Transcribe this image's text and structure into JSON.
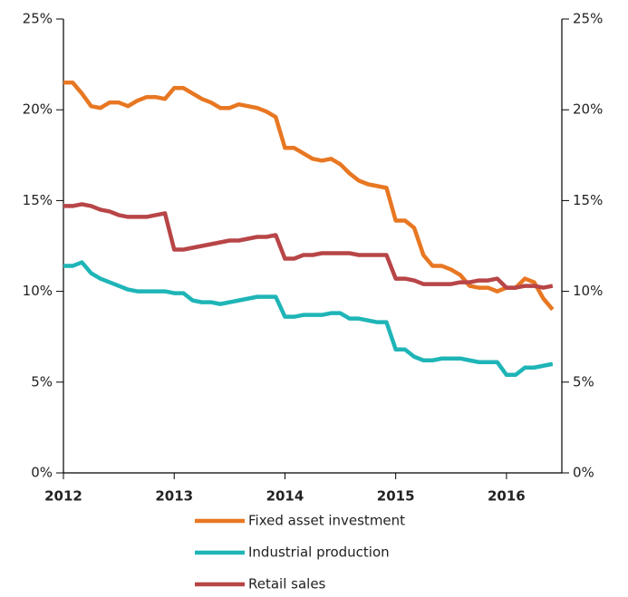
{
  "chart_data": {
    "type": "line",
    "categories": [
      "2012",
      null,
      null,
      null,
      null,
      null,
      null,
      null,
      null,
      null,
      null,
      null,
      "2013",
      null,
      null,
      null,
      null,
      null,
      null,
      null,
      null,
      null,
      null,
      null,
      "2014",
      null,
      null,
      null,
      null,
      null,
      null,
      null,
      null,
      null,
      null,
      null,
      "2015",
      null,
      null,
      null,
      null,
      null,
      null,
      null,
      null,
      null,
      null,
      null,
      "2016",
      null,
      null,
      null,
      null,
      null
    ],
    "series": [
      {
        "name": "Fixed asset investment",
        "color": "#e87722",
        "values": [
          21.5,
          21.5,
          20.9,
          20.2,
          20.1,
          20.4,
          20.4,
          20.2,
          20.5,
          20.7,
          20.7,
          20.6,
          21.2,
          21.2,
          20.9,
          20.6,
          20.4,
          20.1,
          20.1,
          20.3,
          20.2,
          20.1,
          19.9,
          19.6,
          17.9,
          17.9,
          17.6,
          17.3,
          17.2,
          17.3,
          17.0,
          16.5,
          16.1,
          15.9,
          15.8,
          15.7,
          13.9,
          13.9,
          13.5,
          12.0,
          11.4,
          11.4,
          11.2,
          10.9,
          10.3,
          10.2,
          10.2,
          10.0,
          10.2,
          10.2,
          10.7,
          10.5,
          9.6,
          9.0
        ]
      },
      {
        "name": "Industrial production",
        "color": "#1fb5b7",
        "values": [
          11.4,
          11.4,
          11.6,
          11.0,
          10.7,
          10.5,
          10.3,
          10.1,
          10.0,
          10.0,
          10.0,
          10.0,
          9.9,
          9.9,
          9.5,
          9.4,
          9.4,
          9.3,
          9.4,
          9.5,
          9.6,
          9.7,
          9.7,
          9.7,
          8.6,
          8.6,
          8.7,
          8.7,
          8.7,
          8.8,
          8.8,
          8.5,
          8.5,
          8.4,
          8.3,
          8.3,
          6.8,
          6.8,
          6.4,
          6.2,
          6.2,
          6.3,
          6.3,
          6.3,
          6.2,
          6.1,
          6.1,
          6.1,
          5.4,
          5.4,
          5.8,
          5.8,
          5.9,
          6.0
        ]
      },
      {
        "name": "Retail sales",
        "color": "#b84547",
        "values": [
          14.7,
          14.7,
          14.8,
          14.7,
          14.5,
          14.4,
          14.2,
          14.1,
          14.1,
          14.1,
          14.2,
          14.3,
          12.3,
          12.3,
          12.4,
          12.5,
          12.6,
          12.7,
          12.8,
          12.8,
          12.9,
          13.0,
          13.0,
          13.1,
          11.8,
          11.8,
          12.0,
          12.0,
          12.1,
          12.1,
          12.1,
          12.1,
          12.0,
          12.0,
          12.0,
          12.0,
          10.7,
          10.7,
          10.6,
          10.4,
          10.4,
          10.4,
          10.4,
          10.5,
          10.5,
          10.6,
          10.6,
          10.7,
          10.2,
          10.2,
          10.3,
          10.3,
          10.2,
          10.3
        ]
      }
    ],
    "ylim": [
      0,
      25
    ],
    "yticks": [
      {
        "value": 0,
        "label": "0%"
      },
      {
        "value": 5,
        "label": "5%"
      },
      {
        "value": 10,
        "label": "10%"
      },
      {
        "value": 15,
        "label": "15%"
      },
      {
        "value": 20,
        "label": "20%"
      },
      {
        "value": 25,
        "label": "25%"
      }
    ],
    "y2lim": [
      0,
      25
    ],
    "y2ticks": [
      {
        "value": 0,
        "label": "0%"
      },
      {
        "value": 5,
        "label": "5%"
      },
      {
        "value": 10,
        "label": "10%"
      },
      {
        "value": 15,
        "label": "15%"
      },
      {
        "value": 20,
        "label": "20%"
      },
      {
        "value": 25,
        "label": "25%"
      }
    ],
    "legend": "bottom"
  }
}
